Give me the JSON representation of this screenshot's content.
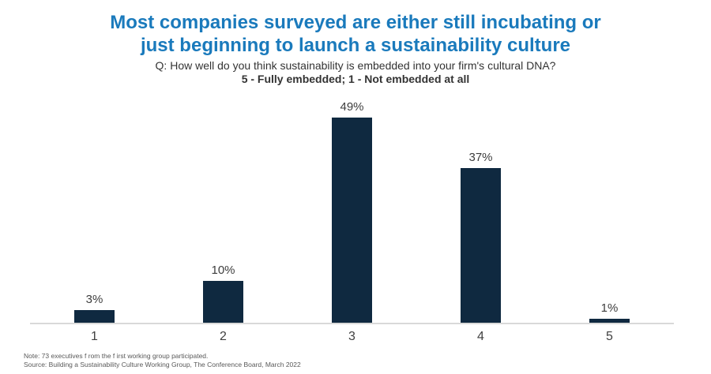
{
  "header": {
    "title_line1": "Most companies surveyed are either still incubating or",
    "title_line2": "just beginning to launch a sustainability culture",
    "subtitle": "Q: How well do you think sustainability is embedded into your firm's cultural DNA?",
    "scale_note": "5 - Fully embedded; 1 - Not embedded at all",
    "title_color": "#1a7abc"
  },
  "chart_data": {
    "type": "bar",
    "categories": [
      "1",
      "2",
      "3",
      "4",
      "5"
    ],
    "values": [
      3,
      10,
      49,
      37,
      1
    ],
    "data_labels": [
      "3%",
      "10%",
      "49%",
      "37%",
      "1%"
    ],
    "title": "Most companies surveyed are either still incubating or just beginning to launch a sustainability culture",
    "xlabel": "",
    "ylabel": "",
    "ylim": [
      0,
      49
    ],
    "grid": false,
    "legend": "none",
    "bar_color": "#0f2940",
    "baseline_color": "#d9d9d9",
    "label_color": "#3d3d3d"
  },
  "footer": {
    "note": "Note: 73 executives f rom the f irst working group participated.",
    "source": "Source: Building  a Sustainability  Culture  Working Group,  The  Conference Board, March 2022"
  }
}
